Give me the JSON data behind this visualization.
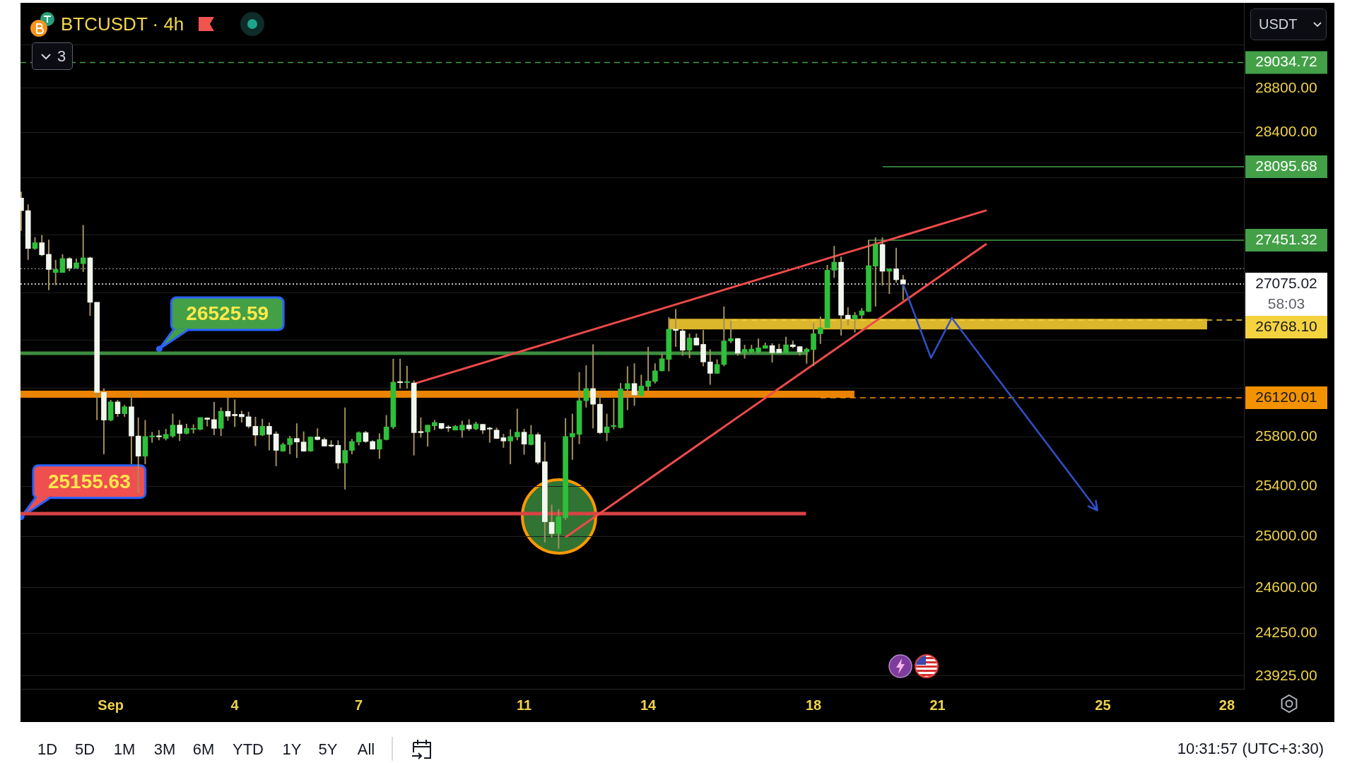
{
  "chart_data": {
    "type": "candlestick",
    "title": "BTCUSDT · 4h",
    "x": [
      "--08-29T20:00",
      "--08-30T00:00",
      "--08-30T04:00",
      "--08-30T08:00",
      "--08-30T12:00",
      "--08-30T16:00",
      "--08-30T20:00",
      "--08-31T00:00",
      "--08-31T04:00",
      "--08-31T08:00",
      "--08-31T12:00",
      "--08-31T16:00",
      "--08-31T20:00",
      "--09-01T00:00",
      "--09-01T04:00",
      "--09-01T08:00",
      "--09-01T12:00",
      "--09-01T16:00",
      "--09-01T20:00",
      "--09-02T00:00",
      "--09-02T04:00",
      "--09-02T08:00",
      "--09-02T12:00",
      "--09-02T16:00",
      "--09-02T20:00",
      "--09-03T00:00",
      "--09-03T04:00",
      "--09-03T08:00",
      "--09-03T12:00",
      "--09-03T16:00",
      "--09-03T20:00",
      "--09-04T00:00",
      "--09-04T04:00",
      "--09-04T08:00",
      "--09-04T12:00",
      "--09-04T16:00",
      "--09-04T20:00",
      "--09-05T00:00",
      "--09-05T04:00",
      "--09-05T08:00",
      "--09-05T12:00",
      "--09-05T16:00",
      "--09-05T20:00",
      "--09-06T00:00",
      "--09-06T04:00",
      "--09-06T08:00",
      "--09-06T12:00",
      "--09-06T16:00",
      "--09-06T20:00",
      "--09-07T00:00",
      "--09-07T04:00",
      "--09-07T08:00",
      "--09-07T12:00",
      "--09-07T16:00",
      "--09-07T20:00",
      "--09-08T00:00",
      "--09-08T04:00",
      "--09-08T08:00",
      "--09-08T12:00",
      "--09-08T16:00",
      "--09-08T20:00",
      "--09-09T00:00",
      "--09-09T04:00",
      "--09-09T08:00",
      "--09-09T12:00",
      "--09-09T16:00",
      "--09-09T20:00",
      "--09-10T00:00",
      "--09-10T04:00",
      "--09-10T08:00",
      "--09-10T12:00",
      "--09-10T16:00",
      "--09-10T20:00",
      "--09-11T00:00",
      "--09-11T04:00",
      "--09-11T08:00",
      "--09-11T12:00",
      "--09-11T16:00",
      "--09-11T20:00",
      "--09-12T00:00",
      "--09-12T04:00",
      "--09-12T08:00",
      "--09-12T12:00",
      "--09-12T16:00",
      "--09-12T20:00",
      "--09-13T00:00",
      "--09-13T04:00",
      "--09-13T08:00",
      "--09-13T12:00",
      "--09-13T16:00",
      "--09-13T20:00",
      "--09-14T00:00",
      "--09-14T04:00",
      "--09-14T08:00",
      "--09-14T12:00",
      "--09-14T16:00",
      "--09-14T20:00",
      "--09-15T00:00",
      "--09-15T04:00",
      "--09-15T08:00",
      "--09-15T12:00",
      "--09-15T16:00",
      "--09-15T20:00",
      "--09-16T00:00",
      "--09-16T04:00",
      "--09-16T08:00",
      "--09-16T12:00",
      "--09-16T16:00",
      "--09-16T20:00",
      "--09-17T00:00",
      "--09-17T04:00",
      "--09-17T08:00",
      "--09-17T12:00",
      "--09-17T16:00",
      "--09-17T20:00",
      "--09-18T00:00",
      "--09-18T04:00",
      "--09-18T08:00",
      "--09-18T12:00",
      "--09-18T16:00",
      "--09-18T20:00",
      "--09-19T00:00",
      "--09-19T04:00",
      "--09-19T08:00",
      "--09-19T12:00",
      "--09-19T16:00",
      "--09-19T20:00",
      "--09-20T00:00",
      "--09-20T04:00"
    ],
    "ohlc": [
      [
        27819,
        27875,
        27533,
        27709
      ],
      [
        27709,
        27764,
        27282,
        27380
      ],
      [
        27380,
        27478,
        27369,
        27430
      ],
      [
        27430,
        27496,
        27314,
        27325
      ],
      [
        27330,
        27456,
        27022,
        27199
      ],
      [
        27173,
        27282,
        27065,
        27199
      ],
      [
        27173,
        27330,
        27173,
        27293
      ],
      [
        27293,
        27304,
        27184,
        27212
      ],
      [
        27212,
        27293,
        27206,
        27256
      ],
      [
        27249,
        27584,
        27178,
        27299
      ],
      [
        27299,
        27308,
        26804,
        26919
      ],
      [
        26919,
        26919,
        25937,
        26165
      ],
      [
        26165,
        26196,
        25659,
        25937
      ],
      [
        25937,
        26102,
        25927,
        26086
      ],
      [
        26086,
        26102,
        25964,
        25989
      ],
      [
        25989,
        26061,
        25964,
        26046
      ],
      [
        26046,
        26159,
        25578,
        25807
      ],
      [
        25807,
        25958,
        25345,
        25643
      ],
      [
        25643,
        25937,
        25578,
        25803
      ],
      [
        25799,
        25840,
        25752,
        25807
      ],
      [
        25805,
        25855,
        25772,
        25800
      ],
      [
        25787,
        25865,
        25772,
        25820
      ],
      [
        25807,
        25989,
        25793,
        25896
      ],
      [
        25896,
        25937,
        25766,
        25828
      ],
      [
        25828,
        25906,
        25820,
        25869
      ],
      [
        25861,
        25902,
        25828,
        25869
      ],
      [
        25861,
        25958,
        25855,
        25958
      ],
      [
        25954,
        25958,
        25886,
        25943
      ],
      [
        25941,
        26086,
        25814,
        25869
      ],
      [
        25869,
        26040,
        25807,
        26009
      ],
      [
        26009,
        26130,
        25931,
        25968
      ],
      [
        25984,
        26106,
        25881,
        25972
      ],
      [
        25984,
        26013,
        25917,
        25964
      ],
      [
        25964,
        26005,
        25869,
        25886
      ],
      [
        25886,
        25964,
        25725,
        25814
      ],
      [
        25814,
        25947,
        25807,
        25886
      ],
      [
        25886,
        25917,
        25690,
        25820
      ],
      [
        25824,
        25844,
        25562,
        25690
      ],
      [
        25684,
        25752,
        25680,
        25737
      ],
      [
        25737,
        25807,
        25659,
        25787
      ],
      [
        25787,
        25910,
        25629,
        25758
      ],
      [
        25758,
        25844,
        25680,
        25684
      ],
      [
        25684,
        25803,
        25680,
        25799
      ],
      [
        25799,
        25869,
        25772,
        25778
      ],
      [
        25778,
        25793,
        25721,
        25725
      ],
      [
        25733,
        25772,
        25717,
        25725
      ],
      [
        25731,
        25772,
        25541,
        25588
      ],
      [
        25588,
        26040,
        25375,
        25690
      ],
      [
        25690,
        25783,
        25659,
        25762
      ],
      [
        25758,
        25844,
        25731,
        25834
      ],
      [
        25834,
        25848,
        25752,
        25762
      ],
      [
        25762,
        25772,
        25696,
        25700
      ],
      [
        25700,
        25828,
        25622,
        25778
      ],
      [
        25778,
        25978,
        25772,
        25881
      ],
      [
        25881,
        26444,
        25865,
        26249
      ],
      [
        26249,
        26444,
        26196,
        26245
      ],
      [
        26245,
        26385,
        26196,
        26249
      ],
      [
        26242,
        26263,
        25649,
        25834
      ],
      [
        25844,
        25958,
        25793,
        25834
      ],
      [
        25840,
        25896,
        25721,
        25896
      ],
      [
        25890,
        25937,
        25855,
        25917
      ],
      [
        25910,
        25910,
        25861,
        25869
      ],
      [
        25878,
        25896,
        25840,
        25872
      ],
      [
        25855,
        25896,
        25855,
        25886
      ],
      [
        25855,
        25931,
        25793,
        25896
      ],
      [
        25896,
        25943,
        25849,
        25865
      ],
      [
        25865,
        25923,
        25855,
        25906
      ],
      [
        25902,
        25906,
        25824,
        25855
      ],
      [
        25867,
        25881,
        25752,
        25863
      ],
      [
        25855,
        25875,
        25783,
        25787
      ],
      [
        25793,
        25824,
        25711,
        25766
      ],
      [
        25766,
        25861,
        25578,
        25803
      ],
      [
        25799,
        26030,
        25772,
        25838
      ],
      [
        25838,
        25865,
        25655,
        25741
      ],
      [
        25737,
        25896,
        25731,
        25818
      ],
      [
        25818,
        25834,
        25578,
        25594
      ],
      [
        25598,
        25758,
        24955,
        25118
      ],
      [
        25114,
        25254,
        24994,
        25024
      ],
      [
        25024,
        25218,
        24905,
        25158
      ],
      [
        25150,
        25952,
        25134,
        25803
      ],
      [
        25799,
        25989,
        25614,
        25828
      ],
      [
        25820,
        26332,
        25741,
        26096
      ],
      [
        26096,
        26389,
        26040,
        26196
      ],
      [
        26196,
        26564,
        25869,
        26067
      ],
      [
        26067,
        26155,
        25824,
        25834
      ],
      [
        25834,
        25989,
        25766,
        25881
      ],
      [
        25884,
        26113,
        25861,
        25888
      ],
      [
        25875,
        26242,
        25869,
        26192
      ],
      [
        26192,
        26381,
        26019,
        26238
      ],
      [
        26238,
        26406,
        26054,
        26144
      ],
      [
        26138,
        26311,
        26130,
        26217
      ],
      [
        26213,
        26543,
        26175,
        26259
      ],
      [
        26255,
        26406,
        26238,
        26343
      ],
      [
        26343,
        26490,
        26339,
        26444
      ],
      [
        26438,
        26792,
        26339,
        26691
      ],
      [
        26691,
        26862,
        26543,
        26681
      ],
      [
        26677,
        26691,
        26469,
        26515
      ],
      [
        26515,
        26655,
        26448,
        26617
      ],
      [
        26617,
        26655,
        26554,
        26558
      ],
      [
        26564,
        26685,
        26381,
        26417
      ],
      [
        26417,
        26522,
        26228,
        26322
      ],
      [
        26322,
        26438,
        26318,
        26396
      ],
      [
        26396,
        26883,
        26381,
        26592
      ],
      [
        26592,
        26762,
        26575,
        26613
      ],
      [
        26613,
        26617,
        26469,
        26490
      ],
      [
        26494,
        26560,
        26445,
        26522
      ],
      [
        26501,
        26560,
        26490,
        26524
      ],
      [
        26501,
        26613,
        26490,
        26535
      ],
      [
        26531,
        26579,
        26531,
        26554
      ],
      [
        26554,
        26573,
        26412,
        26494
      ],
      [
        26524,
        26568,
        26490,
        26494
      ],
      [
        26494,
        26628,
        26490,
        26560
      ],
      [
        26560,
        26594,
        26531,
        26545
      ],
      [
        26545,
        26550,
        26471,
        26501
      ],
      [
        26501,
        26535,
        26402,
        26524
      ],
      [
        26520,
        26743,
        26383,
        26653
      ],
      [
        26653,
        26798,
        26568,
        26704
      ],
      [
        26704,
        27238,
        26700,
        27193
      ],
      [
        27193,
        27402,
        27128,
        27262
      ],
      [
        27262,
        27310,
        26638,
        26810
      ],
      [
        26810,
        26877,
        26724,
        26777
      ],
      [
        26777,
        26836,
        26664,
        26810
      ],
      [
        26810,
        26870,
        26777,
        26846
      ],
      [
        26842,
        27456,
        26836,
        27232
      ],
      [
        27228,
        27476,
        26883,
        27415
      ],
      [
        27415,
        27476,
        27063,
        27184
      ],
      [
        27184,
        27208,
        26990,
        27204
      ],
      [
        27204,
        27386,
        27087,
        27111
      ],
      [
        27111,
        27152,
        26937,
        27075.02
      ]
    ],
    "colors": [
      "#f2f7ee",
      "#f2f7ee",
      "#2fbf3a",
      "#f2f7ee",
      "#f2f7ee",
      "#2fbf3a",
      "#2fbf3a",
      "#f2f7ee",
      "#2fbf3a",
      "#2fbf3a",
      "#f2f7ee",
      "#f2f7ee",
      "#f2f7ee",
      "#2fbf3a",
      "#f2f7ee",
      "#2fbf3a",
      "#f2f7ee",
      "#f2f7ee",
      "#2fbf3a",
      "#2fbf3a",
      "#f2f7ee",
      "#2fbf3a",
      "#2fbf3a",
      "#f2f7ee",
      "#2fbf3a",
      "#2fbf3a",
      "#2fbf3a",
      "#f2f7ee",
      "#f2f7ee",
      "#2fbf3a",
      "#f2f7ee",
      "#f2f7ee",
      "#f2f7ee",
      "#f2f7ee",
      "#f2f7ee",
      "#2fbf3a",
      "#f2f7ee",
      "#f2f7ee",
      "#2fbf3a",
      "#2fbf3a",
      "#f2f7ee",
      "#f2f7ee",
      "#2fbf3a",
      "#f2f7ee",
      "#f2f7ee",
      "#f2f7ee",
      "#f2f7ee",
      "#2fbf3a",
      "#2fbf3a",
      "#2fbf3a",
      "#f2f7ee",
      "#f2f7ee",
      "#2fbf3a",
      "#2fbf3a",
      "#2fbf3a",
      "#f2f7ee",
      "#2fbf3a",
      "#f2f7ee",
      "#f2f7ee",
      "#2fbf3a",
      "#2fbf3a",
      "#f2f7ee",
      "#f2f7ee",
      "#2fbf3a",
      "#2fbf3a",
      "#f2f7ee",
      "#2fbf3a",
      "#f2f7ee",
      "#f2f7ee",
      "#f2f7ee",
      "#f2f7ee",
      "#2fbf3a",
      "#2fbf3a",
      "#f2f7ee",
      "#2fbf3a",
      "#f2f7ee",
      "#f2f7ee",
      "#f2f7ee",
      "#2fbf3a",
      "#2fbf3a",
      "#2fbf3a",
      "#2fbf3a",
      "#2fbf3a",
      "#f2f7ee",
      "#f2f7ee",
      "#2fbf3a",
      "#2fbf3a",
      "#2fbf3a",
      "#2fbf3a",
      "#f2f7ee",
      "#2fbf3a",
      "#2fbf3a",
      "#2fbf3a",
      "#2fbf3a",
      "#2fbf3a",
      "#f2f7ee",
      "#f2f7ee",
      "#2fbf3a",
      "#f2f7ee",
      "#f2f7ee",
      "#f2f7ee",
      "#2fbf3a",
      "#2fbf3a",
      "#2fbf3a",
      "#f2f7ee",
      "#2fbf3a",
      "#2fbf3a",
      "#2fbf3a",
      "#2fbf3a",
      "#f2f7ee",
      "#f2f7ee",
      "#2fbf3a",
      "#f2f7ee",
      "#f2f7ee",
      "#2fbf3a",
      "#2fbf3a",
      "#2fbf3a",
      "#2fbf3a",
      "#2fbf3a",
      "#f2f7ee",
      "#f2f7ee",
      "#2fbf3a",
      "#2fbf3a",
      "#2fbf3a",
      "#2fbf3a",
      "#f2f7ee",
      "#2fbf3a",
      "#f2f7ee",
      "#f2f7ee"
    ],
    "series": [
      {
        "type": "line",
        "x": [
          "--08-29T19:36",
          "--09-28T09:52"
        ],
        "values": [
          29034.72,
          29034.72
        ],
        "color": "#43a047",
        "line_style": "dashed",
        "value_labels": [
          null,
          "29034.72"
        ]
      },
      {
        "type": "line",
        "x": [
          "--09-19T16:10",
          "--09-28T09:52"
        ],
        "values": [
          28095.68,
          28095.68
        ],
        "color": "#43a047",
        "value_labels": [
          null,
          "28095.68"
        ]
      },
      {
        "type": "line",
        "x": [
          "--09-19T08:25",
          "--09-28T09:52"
        ],
        "values": [
          27451.32,
          27451.32
        ],
        "color": "#43a047",
        "value_labels": [
          null,
          "27451.32"
        ]
      },
      {
        "type": "line",
        "x": [
          "--08-29T19:36",
          "--09-28T09:52"
        ],
        "values": [
          27206,
          27206
        ],
        "color": "#8a8d96",
        "line_style": "dotted"
      },
      {
        "type": "line",
        "x": [
          "--08-29T19:36",
          "--09-28T09:52"
        ],
        "values": [
          27075.02,
          27075.02
        ],
        "color": "#ffffff",
        "line_style": "dotted",
        "value_labels": [
          null,
          "27075.02\n58:03"
        ]
      },
      {
        "type": "line",
        "x": [
          "--09-14T12:15",
          "--09-27T12:30"
        ],
        "values": [
          26735,
          26735
        ],
        "color": "#dcb72c"
      },
      {
        "type": "line",
        "x": [
          "--09-16T00:30",
          "--09-28T09:52"
        ],
        "values": [
          26768.1,
          26768.1
        ],
        "color": "#f5d33f",
        "line_style": "dashed",
        "value_labels": [
          null,
          "26768.10"
        ]
      },
      {
        "type": "line",
        "x": [
          "--08-29T19:36",
          "--09-17T20:40"
        ],
        "values": [
          26490,
          26490
        ],
        "color": "#3e8e41"
      },
      {
        "type": "line",
        "x": [
          "--08-29T19:36",
          "--09-18T23:45"
        ],
        "values": [
          26150,
          26150
        ],
        "color": "#e98300"
      },
      {
        "type": "line",
        "x": [
          "--09-18T04:00",
          "--09-28T09:52"
        ],
        "values": [
          26120.01,
          26120.01
        ],
        "color": "#f39200",
        "line_style": "dashed",
        "value_labels": [
          null,
          "26120.01"
        ]
      },
      {
        "type": "line",
        "x": [
          "--08-29T19:36",
          "--09-17T19:40"
        ],
        "values": [
          25183,
          25183
        ],
        "color": "#d84343"
      },
      {
        "type": "line",
        "x": [
          "--09-08T08:30",
          "--09-22T04:30"
        ],
        "values": [
          26238,
          27712
        ],
        "color": "#f04a4a"
      },
      {
        "type": "line",
        "x": [
          "--09-12T00:00",
          "--09-22T04:30"
        ],
        "values": [
          24995,
          27421
        ],
        "color": "#f04a4a"
      }
    ],
    "xlim": [
      "--08-29T19:36",
      "--09-28T09:52"
    ],
    "xticks": [
      {
        "value": "--09-01",
        "label": "Sep"
      },
      {
        "value": "--09-04",
        "label": "4"
      },
      {
        "value": "--09-07",
        "label": "7"
      },
      {
        "value": "--09-11",
        "label": "11"
      },
      {
        "value": "--09-14",
        "label": "14"
      },
      {
        "value": "--09-18",
        "label": "18"
      },
      {
        "value": "--09-21",
        "label": "21"
      },
      {
        "value": "--09-25",
        "label": "25"
      },
      {
        "value": "--09-28",
        "label": "28"
      }
    ],
    "ylim": [
      23828,
      29587
    ],
    "yticks": [
      {
        "value": 23925,
        "label": "23925.00"
      },
      {
        "value": 24250,
        "label": "24250.00"
      },
      {
        "value": 24600,
        "label": "24600.00"
      },
      {
        "value": 25000,
        "label": "25000.00"
      },
      {
        "value": 25400,
        "label": "25400.00"
      },
      {
        "value": 25800,
        "label": "25800.00"
      },
      {
        "value": 26200,
        "label": null
      },
      {
        "value": 26600,
        "label": null
      },
      {
        "value": 27000,
        "label": null
      },
      {
        "value": 27500,
        "label": null
      },
      {
        "value": 28000,
        "label": null
      },
      {
        "value": 28400,
        "label": "28400.00"
      },
      {
        "value": 28800,
        "label": "28800.00"
      },
      {
        "value": 29200,
        "label": null
      }
    ],
    "log": true,
    "grid": "y",
    "annotations": [
      {
        "text": "26525.59",
        "x": "--09-02T04:10",
        "y": 26525.59
      },
      {
        "text": "25155.63",
        "x": "--08-29T20:00",
        "y": 25155.63
      },
      "3",
      "USDT",
      "1D",
      "5D",
      "1M",
      "3M",
      "6M",
      "YTD",
      "1Y",
      "5Y",
      "All",
      "10:31:57 (UTC+3:30)"
    ]
  }
}
